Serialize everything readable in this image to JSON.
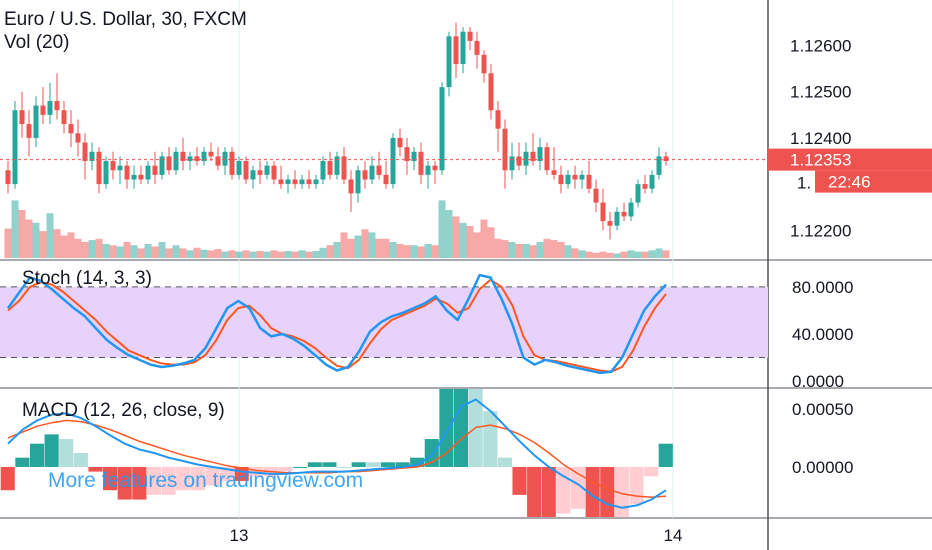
{
  "header": {
    "title": "Euro / U.S. Dollar, 30, FXCM",
    "volume_label": "Vol (20)"
  },
  "price_axis": {
    "ticks": [
      "1.12600",
      "1.12500",
      "1.12400",
      "1.12200"
    ],
    "tick_values": [
      1.126,
      1.125,
      1.124,
      1.122
    ],
    "range": [
      1.1214,
      1.1269
    ],
    "last_price": "1.12353",
    "last_price_value": 1.12353,
    "countdown": "22:46",
    "partial_tick": "1."
  },
  "stoch": {
    "label": "Stoch (14, 3, 3)",
    "ticks": [
      "80.0000",
      "40.0000",
      "0.0000"
    ],
    "tick_values": [
      80,
      40,
      0
    ],
    "range": [
      -5,
      102
    ],
    "band": [
      20,
      80
    ]
  },
  "macd": {
    "label": "MACD (12, 26, close, 9)",
    "ticks": [
      "0.00050",
      "0.00000"
    ],
    "tick_values": [
      0.0005,
      0.0
    ],
    "range": [
      -0.00043,
      0.00067
    ]
  },
  "time_axis": {
    "labels": [
      "13",
      "14"
    ],
    "label_index": [
      33,
      95
    ]
  },
  "watermark": "More features on tradingview.com",
  "colors": {
    "up": "#26a69a",
    "down": "#ef5350",
    "stoch_k": "#2196f3",
    "stoch_d": "#ff5722",
    "stoch_band": "#e6d2fb",
    "watermark": "#2196f3"
  },
  "chart_data": {
    "type": "candlestick",
    "title": "Euro / U.S. Dollar, 30, FXCM",
    "ohlc": [
      [
        1.1233,
        1.1235,
        1.1228,
        1.123
      ],
      [
        1.123,
        1.1248,
        1.1229,
        1.1246
      ],
      [
        1.1246,
        1.125,
        1.124,
        1.1243
      ],
      [
        1.1243,
        1.1246,
        1.1236,
        1.124
      ],
      [
        1.124,
        1.1249,
        1.1238,
        1.1247
      ],
      [
        1.1247,
        1.1251,
        1.1243,
        1.1245
      ],
      [
        1.1245,
        1.1252,
        1.1243,
        1.1248
      ],
      [
        1.1248,
        1.1254,
        1.1244,
        1.1246
      ],
      [
        1.1246,
        1.1248,
        1.1241,
        1.1243
      ],
      [
        1.1243,
        1.1246,
        1.1238,
        1.1241
      ],
      [
        1.1241,
        1.1244,
        1.1236,
        1.1239
      ],
      [
        1.1239,
        1.1241,
        1.1231,
        1.1235
      ],
      [
        1.1235,
        1.1239,
        1.1233,
        1.1237
      ],
      [
        1.1237,
        1.1238,
        1.1228,
        1.123
      ],
      [
        1.123,
        1.1236,
        1.1229,
        1.1235
      ],
      [
        1.1235,
        1.1237,
        1.1231,
        1.1233
      ],
      [
        1.1233,
        1.1236,
        1.123,
        1.1234
      ],
      [
        1.1234,
        1.1235,
        1.1229,
        1.1231
      ],
      [
        1.1231,
        1.1234,
        1.1229,
        1.1232
      ],
      [
        1.1232,
        1.1234,
        1.123,
        1.1231
      ],
      [
        1.1231,
        1.1235,
        1.123,
        1.1234
      ],
      [
        1.1234,
        1.1237,
        1.123,
        1.1232
      ],
      [
        1.1232,
        1.1237,
        1.1231,
        1.1236
      ],
      [
        1.1236,
        1.1238,
        1.1232,
        1.1233
      ],
      [
        1.1233,
        1.1238,
        1.1232,
        1.1237
      ],
      [
        1.1237,
        1.124,
        1.1233,
        1.1235
      ],
      [
        1.1235,
        1.1237,
        1.1233,
        1.1236
      ],
      [
        1.1236,
        1.1238,
        1.1234,
        1.1235
      ],
      [
        1.1235,
        1.1238,
        1.1234,
        1.1237
      ],
      [
        1.1237,
        1.1239,
        1.1235,
        1.1236
      ],
      [
        1.1236,
        1.1238,
        1.1233,
        1.1234
      ],
      [
        1.1234,
        1.1238,
        1.1232,
        1.1237
      ],
      [
        1.1237,
        1.1238,
        1.1231,
        1.1232
      ],
      [
        1.1232,
        1.1236,
        1.1231,
        1.1235
      ],
      [
        1.1235,
        1.1236,
        1.123,
        1.1231
      ],
      [
        1.1231,
        1.1234,
        1.1229,
        1.1233
      ],
      [
        1.1233,
        1.1235,
        1.123,
        1.1232
      ],
      [
        1.1232,
        1.1235,
        1.1231,
        1.1234
      ],
      [
        1.1234,
        1.1235,
        1.123,
        1.1231
      ],
      [
        1.1231,
        1.1234,
        1.1229,
        1.123
      ],
      [
        1.123,
        1.1232,
        1.1228,
        1.1231
      ],
      [
        1.1231,
        1.1233,
        1.1229,
        1.123
      ],
      [
        1.123,
        1.1232,
        1.1229,
        1.1231
      ],
      [
        1.1231,
        1.1233,
        1.1229,
        1.123
      ],
      [
        1.123,
        1.1232,
        1.1229,
        1.1231
      ],
      [
        1.1231,
        1.1236,
        1.123,
        1.1235
      ],
      [
        1.1235,
        1.1237,
        1.1231,
        1.1232
      ],
      [
        1.1232,
        1.1237,
        1.1231,
        1.1236
      ],
      [
        1.1236,
        1.1238,
        1.123,
        1.1231
      ],
      [
        1.1231,
        1.1233,
        1.1224,
        1.1228
      ],
      [
        1.1228,
        1.1234,
        1.1226,
        1.1233
      ],
      [
        1.1233,
        1.1235,
        1.1229,
        1.1231
      ],
      [
        1.1231,
        1.1236,
        1.123,
        1.1234
      ],
      [
        1.1234,
        1.1237,
        1.1231,
        1.1232
      ],
      [
        1.1232,
        1.1235,
        1.1229,
        1.123
      ],
      [
        1.123,
        1.1241,
        1.1229,
        1.124
      ],
      [
        1.124,
        1.1242,
        1.1236,
        1.1238
      ],
      [
        1.1238,
        1.124,
        1.1232,
        1.1235
      ],
      [
        1.1235,
        1.1238,
        1.1233,
        1.1237
      ],
      [
        1.1237,
        1.1239,
        1.123,
        1.1232
      ],
      [
        1.1232,
        1.1235,
        1.1229,
        1.1234
      ],
      [
        1.1234,
        1.1235,
        1.123,
        1.1233
      ],
      [
        1.1233,
        1.1252,
        1.1232,
        1.1251
      ],
      [
        1.1251,
        1.1263,
        1.1249,
        1.1262
      ],
      [
        1.1262,
        1.1265,
        1.1253,
        1.1256
      ],
      [
        1.1256,
        1.1264,
        1.1254,
        1.1263
      ],
      [
        1.1263,
        1.1264,
        1.1259,
        1.1261
      ],
      [
        1.1261,
        1.1263,
        1.1255,
        1.1258
      ],
      [
        1.1258,
        1.1259,
        1.1252,
        1.1254
      ],
      [
        1.1254,
        1.1256,
        1.1244,
        1.1246
      ],
      [
        1.1246,
        1.1248,
        1.1237,
        1.1242
      ],
      [
        1.1242,
        1.1244,
        1.1229,
        1.1233
      ],
      [
        1.1233,
        1.1239,
        1.1231,
        1.1236
      ],
      [
        1.1236,
        1.1239,
        1.1233,
        1.1234
      ],
      [
        1.1234,
        1.1239,
        1.1232,
        1.1237
      ],
      [
        1.1237,
        1.1241,
        1.1234,
        1.1235
      ],
      [
        1.1235,
        1.124,
        1.1233,
        1.1238
      ],
      [
        1.1238,
        1.1239,
        1.1232,
        1.1233
      ],
      [
        1.1233,
        1.1238,
        1.1231,
        1.1232
      ],
      [
        1.1232,
        1.1234,
        1.1228,
        1.123
      ],
      [
        1.123,
        1.1233,
        1.1229,
        1.1232
      ],
      [
        1.1232,
        1.1234,
        1.1229,
        1.1231
      ],
      [
        1.1231,
        1.1233,
        1.1229,
        1.1232
      ],
      [
        1.1232,
        1.1235,
        1.1228,
        1.1229
      ],
      [
        1.1229,
        1.1231,
        1.1224,
        1.1226
      ],
      [
        1.1226,
        1.1229,
        1.122,
        1.1222
      ],
      [
        1.1222,
        1.1224,
        1.1218,
        1.1221
      ],
      [
        1.1221,
        1.1225,
        1.122,
        1.1224
      ],
      [
        1.1224,
        1.1226,
        1.1222,
        1.1223
      ],
      [
        1.1223,
        1.1227,
        1.1222,
        1.1226
      ],
      [
        1.1226,
        1.1231,
        1.1225,
        1.123
      ],
      [
        1.123,
        1.1232,
        1.1228,
        1.1229
      ],
      [
        1.1229,
        1.1233,
        1.1228,
        1.1232
      ],
      [
        1.1232,
        1.1238,
        1.1231,
        1.1236
      ],
      [
        1.1236,
        1.1237,
        1.1234,
        1.1235
      ]
    ],
    "volume": [
      0.46,
      0.9,
      0.75,
      0.6,
      0.55,
      0.42,
      0.7,
      0.45,
      0.35,
      0.4,
      0.3,
      0.25,
      0.28,
      0.3,
      0.22,
      0.2,
      0.18,
      0.25,
      0.2,
      0.15,
      0.22,
      0.18,
      0.25,
      0.15,
      0.2,
      0.15,
      0.12,
      0.16,
      0.13,
      0.12,
      0.14,
      0.1,
      0.12,
      0.1,
      0.12,
      0.1,
      0.11,
      0.1,
      0.12,
      0.1,
      0.11,
      0.1,
      0.12,
      0.1,
      0.11,
      0.16,
      0.2,
      0.25,
      0.4,
      0.3,
      0.35,
      0.45,
      0.4,
      0.3,
      0.3,
      0.25,
      0.22,
      0.2,
      0.2,
      0.18,
      0.22,
      0.2,
      0.9,
      0.75,
      0.65,
      0.55,
      0.5,
      0.4,
      0.6,
      0.48,
      0.3,
      0.28,
      0.25,
      0.22,
      0.22,
      0.2,
      0.25,
      0.3,
      0.28,
      0.25,
      0.2,
      0.15,
      0.12,
      0.1,
      0.08,
      0.1,
      0.08,
      0.07,
      0.1,
      0.12,
      0.1,
      0.1,
      0.12,
      0.15,
      0.12
    ],
    "stoch_k": [
      62,
      75,
      88,
      85,
      78,
      70,
      62,
      55,
      45,
      35,
      28,
      22,
      18,
      14,
      12,
      13,
      15,
      18,
      28,
      45,
      62,
      68,
      62,
      45,
      38,
      40,
      36,
      30,
      22,
      14,
      9,
      12,
      25,
      42,
      50,
      55,
      58,
      62,
      66,
      72,
      60,
      52,
      70,
      90,
      88,
      70,
      48,
      20,
      14,
      18,
      16,
      13,
      11,
      9,
      7,
      8,
      20,
      40,
      60,
      72,
      82
    ],
    "stoch_d": [
      60,
      68,
      80,
      84,
      82,
      76,
      68,
      60,
      52,
      42,
      34,
      26,
      22,
      18,
      15,
      14,
      14,
      16,
      22,
      35,
      52,
      62,
      64,
      56,
      45,
      40,
      38,
      34,
      28,
      20,
      13,
      11,
      18,
      32,
      44,
      52,
      56,
      60,
      64,
      70,
      66,
      58,
      62,
      78,
      86,
      80,
      64,
      38,
      22,
      18,
      17,
      15,
      13,
      11,
      9,
      8,
      12,
      26,
      46,
      62,
      74
    ],
    "macd": [
      0.0002,
      0.00032,
      0.0004,
      0.00045,
      0.00046,
      0.00042,
      0.00035,
      0.00027,
      0.0002,
      0.00015,
      0.00012,
      8e-05,
      5e-05,
      2e-05,
      0.0,
      -2e-05,
      -4e-05,
      -5e-05,
      -6e-05,
      -6e-05,
      -5e-05,
      -4e-05,
      -4e-05,
      -4e-05,
      -3e-05,
      -2e-05,
      -1e-05,
      0.0,
      2e-05,
      0.0001,
      0.0003,
      0.00052,
      0.00058,
      0.00048,
      0.00035,
      0.00022,
      0.0001,
      0.0,
      -8e-05,
      -0.00015,
      -0.00025,
      -0.00032,
      -0.00035,
      -0.00033,
      -0.00028,
      -0.0002
    ],
    "macd_signal": [
      0.00025,
      0.0003,
      0.00035,
      0.00038,
      0.0004,
      0.00039,
      0.00036,
      0.00032,
      0.00027,
      0.00022,
      0.00018,
      0.00014,
      0.0001,
      7e-05,
      4e-05,
      1e-05,
      -1e-05,
      -3e-05,
      -4e-05,
      -5e-05,
      -5e-05,
      -5e-05,
      -5e-05,
      -4e-05,
      -4e-05,
      -3e-05,
      -2e-05,
      -1e-05,
      0.0,
      4e-05,
      0.00012,
      0.00024,
      0.00034,
      0.00036,
      0.00033,
      0.00028,
      0.00021,
      0.00012,
      2e-05,
      -6e-05,
      -0.00013,
      -0.00019,
      -0.00023,
      -0.00025,
      -0.00026,
      -0.00025
    ]
  }
}
